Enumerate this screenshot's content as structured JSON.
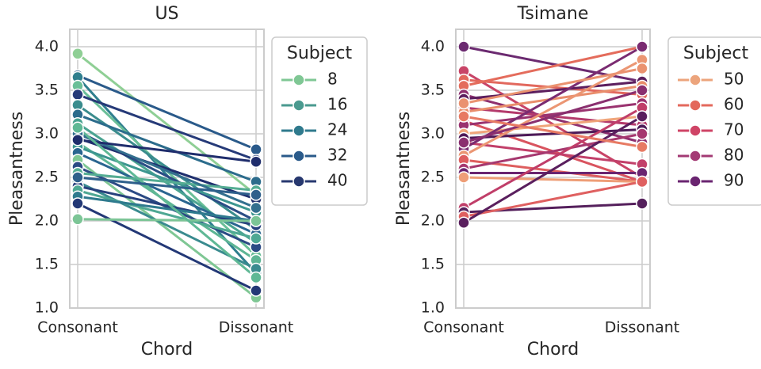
{
  "chart_data": [
    {
      "type": "line",
      "title": "US",
      "x_label": "Chord",
      "y_label": "Pleasantness",
      "categories": [
        "Consonant",
        "Dissonant"
      ],
      "ylim": [
        1.0,
        4.2
      ],
      "yticks": [
        {
          "value": 1.0,
          "label": "1.0"
        },
        {
          "value": 1.5,
          "label": "1.5"
        },
        {
          "value": 2.0,
          "label": "2.0"
        },
        {
          "value": 2.5,
          "label": "2.5"
        },
        {
          "value": 3.0,
          "label": "3.0"
        },
        {
          "value": 3.5,
          "label": "3.5"
        },
        {
          "value": 4.0,
          "label": "4.0"
        }
      ],
      "grid": true,
      "series": [
        {
          "color": "#8fcf95",
          "values": [
            3.92,
            2.3
          ]
        },
        {
          "color": "#2a5a8a",
          "values": [
            3.67,
            2.82
          ]
        },
        {
          "color": "#2f7f8e",
          "values": [
            3.65,
            1.4
          ]
        },
        {
          "color": "#6abf98",
          "values": [
            3.55,
            1.6
          ]
        },
        {
          "color": "#263a78",
          "values": [
            3.45,
            2.7
          ]
        },
        {
          "color": "#3a8c8d",
          "values": [
            3.33,
            1.9
          ]
        },
        {
          "color": "#2c6c8c",
          "values": [
            3.22,
            2.45
          ]
        },
        {
          "color": "#4aa391",
          "values": [
            3.12,
            1.75
          ]
        },
        {
          "color": "#2b4d85",
          "values": [
            3.03,
            2.0
          ]
        },
        {
          "color": "#1f2f6e",
          "values": [
            2.95,
            2.25
          ]
        },
        {
          "color": "#5db594",
          "values": [
            2.9,
            1.55
          ]
        },
        {
          "color": "#3d9690",
          "values": [
            2.85,
            2.1
          ]
        },
        {
          "color": "#2a6590",
          "values": [
            2.78,
            1.85
          ]
        },
        {
          "color": "#7fc794",
          "values": [
            2.7,
            1.12
          ]
        },
        {
          "color": "#2b4a84",
          "values": [
            2.62,
            1.7
          ]
        },
        {
          "color": "#55ad93",
          "values": [
            2.55,
            2.35
          ]
        },
        {
          "color": "#3a8b8f",
          "values": [
            2.45,
            1.45
          ]
        },
        {
          "color": "#27417d",
          "values": [
            2.4,
            1.95
          ]
        },
        {
          "color": "#4ea893",
          "values": [
            2.35,
            1.8
          ]
        },
        {
          "color": "#2e7a8e",
          "values": [
            2.28,
            2.0
          ]
        },
        {
          "color": "#233876",
          "values": [
            2.2,
            1.2
          ]
        },
        {
          "color": "#7cc596",
          "values": [
            2.02,
            2.0
          ]
        },
        {
          "color": "#336f8e",
          "values": [
            3.0,
            2.15
          ]
        },
        {
          "color": "#1f2d6c",
          "values": [
            2.93,
            2.68
          ]
        },
        {
          "color": "#5fb895",
          "values": [
            3.07,
            1.35
          ]
        },
        {
          "color": "#2e5f8b",
          "values": [
            2.5,
            2.3
          ]
        }
      ],
      "legend": {
        "title": "Subject",
        "corner": "outside-upper-right",
        "entries": [
          {
            "label": 8,
            "color": "#7fc794"
          },
          {
            "label": 16,
            "color": "#4a9a8f"
          },
          {
            "label": 24,
            "color": "#2f7a8d"
          },
          {
            "label": 32,
            "color": "#2a5a8a"
          },
          {
            "label": 40,
            "color": "#27386f"
          }
        ]
      }
    },
    {
      "type": "line",
      "title": "Tsimane",
      "x_label": "Chord",
      "y_label": "Pleasantness",
      "categories": [
        "Consonant",
        "Dissonant"
      ],
      "ylim": [
        1.0,
        4.2
      ],
      "yticks": [
        {
          "value": 1.0,
          "label": "1.0"
        },
        {
          "value": 1.5,
          "label": "1.5"
        },
        {
          "value": 2.0,
          "label": "2.0"
        },
        {
          "value": 2.5,
          "label": "2.5"
        },
        {
          "value": 3.0,
          "label": "3.0"
        },
        {
          "value": 3.5,
          "label": "3.5"
        },
        {
          "value": 4.0,
          "label": "4.0"
        }
      ],
      "grid": true,
      "series": [
        {
          "color": "#6b2a70",
          "values": [
            4.0,
            3.6
          ]
        },
        {
          "color": "#c84467",
          "values": [
            3.72,
            2.5
          ]
        },
        {
          "color": "#e2685d",
          "values": [
            3.62,
            3.45
          ]
        },
        {
          "color": "#e46c5c",
          "values": [
            3.55,
            4.0
          ]
        },
        {
          "color": "#8e2f6f",
          "values": [
            3.45,
            2.9
          ]
        },
        {
          "color": "#5c1e5e",
          "values": [
            3.4,
            3.6
          ]
        },
        {
          "color": "#b43a6c",
          "values": [
            3.3,
            3.1
          ]
        },
        {
          "color": "#e98d6b",
          "values": [
            3.25,
            3.55
          ]
        },
        {
          "color": "#d9545f",
          "values": [
            3.15,
            2.45
          ]
        },
        {
          "color": "#9a326f",
          "values": [
            3.1,
            3.35
          ]
        },
        {
          "color": "#f0a57a",
          "values": [
            3.0,
            3.2
          ]
        },
        {
          "color": "#4e1a58",
          "values": [
            2.95,
            3.05
          ]
        },
        {
          "color": "#c2406a",
          "values": [
            2.9,
            2.65
          ]
        },
        {
          "color": "#7a2b71",
          "values": [
            2.83,
            4.0
          ]
        },
        {
          "color": "#eb9673",
          "values": [
            2.75,
            3.85
          ]
        },
        {
          "color": "#de5e5e",
          "values": [
            2.7,
            2.45
          ]
        },
        {
          "color": "#a6386f",
          "values": [
            2.6,
            3.0
          ]
        },
        {
          "color": "#6a2470",
          "values": [
            2.55,
            2.55
          ]
        },
        {
          "color": "#ee9e77",
          "values": [
            2.5,
            2.45
          ]
        },
        {
          "color": "#c03e69",
          "values": [
            2.15,
            3.3
          ]
        },
        {
          "color": "#55205c",
          "values": [
            2.1,
            2.2
          ]
        },
        {
          "color": "#df6060",
          "values": [
            2.05,
            2.45
          ]
        },
        {
          "color": "#5a1f5e",
          "values": [
            1.98,
            3.2
          ]
        },
        {
          "color": "#ea9270",
          "values": [
            3.35,
            3.75
          ]
        },
        {
          "color": "#8a2f6f",
          "values": [
            2.9,
            3.5
          ]
        },
        {
          "color": "#e77a63",
          "values": [
            3.2,
            2.85
          ]
        }
      ],
      "legend": {
        "title": "Subject",
        "corner": "outside-upper-right",
        "entries": [
          {
            "label": 50,
            "color": "#eca47c"
          },
          {
            "label": 60,
            "color": "#e3685c"
          },
          {
            "label": 70,
            "color": "#cf4466"
          },
          {
            "label": 80,
            "color": "#a33a74"
          },
          {
            "label": 90,
            "color": "#6a2470"
          }
        ]
      }
    }
  ]
}
